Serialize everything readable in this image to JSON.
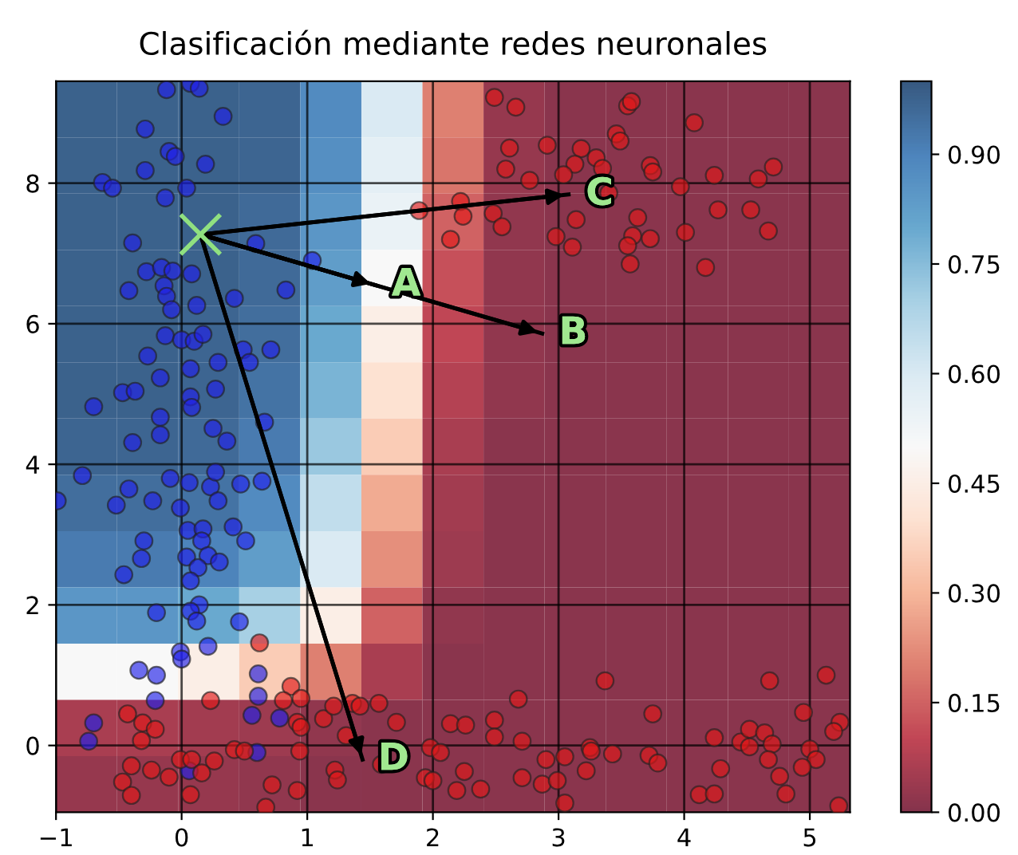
{
  "chart_data": [
    {
      "type": "heatmap",
      "categories": [
        null,
        null,
        null,
        null,
        null,
        null,
        null,
        null,
        null,
        null,
        null,
        null,
        null
      ],
      "y_categories": [
        null,
        null,
        null,
        null,
        null,
        null,
        null,
        null,
        null,
        null,
        null,
        null,
        null
      ],
      "clim": [
        0,
        1
      ],
      "cticks": [
        {
          "value": 0,
          "label": "0.00"
        },
        {
          "value": 0.15,
          "label": "0.15"
        },
        {
          "value": 0.3,
          "label": "0.30"
        },
        {
          "value": 0.45,
          "label": "0.45"
        },
        {
          "value": 0.6,
          "label": "0.60"
        },
        {
          "value": 0.75,
          "label": "0.75"
        },
        {
          "value": 0.9,
          "label": "0.90"
        }
      ],
      "cells": [
        [
          0.98,
          0.98,
          0.98,
          0.97,
          0.88,
          0.6,
          0.2,
          0.03,
          0.01,
          0.01,
          0.01,
          0.01,
          0.01
        ],
        [
          0.98,
          0.98,
          0.98,
          0.97,
          0.87,
          0.57,
          0.18,
          0.03,
          0.01,
          0.01,
          0.01,
          0.01,
          0.01
        ],
        [
          0.98,
          0.98,
          0.98,
          0.96,
          0.85,
          0.55,
          0.15,
          0.02,
          0.01,
          0.01,
          0.01,
          0.01,
          0.01
        ],
        [
          0.98,
          0.98,
          0.98,
          0.96,
          0.83,
          0.5,
          0.12,
          0.02,
          0.01,
          0.01,
          0.01,
          0.01,
          0.01
        ],
        [
          0.98,
          0.98,
          0.97,
          0.95,
          0.8,
          0.45,
          0.1,
          0.02,
          0.01,
          0.01,
          0.01,
          0.01,
          0.01
        ],
        [
          0.98,
          0.98,
          0.97,
          0.94,
          0.77,
          0.4,
          0.08,
          0.02,
          0.01,
          0.01,
          0.01,
          0.01,
          0.01
        ],
        [
          0.97,
          0.97,
          0.96,
          0.92,
          0.72,
          0.35,
          0.06,
          0.01,
          0.01,
          0.01,
          0.01,
          0.01,
          0.01
        ],
        [
          0.95,
          0.95,
          0.94,
          0.88,
          0.65,
          0.28,
          0.05,
          0.01,
          0.01,
          0.01,
          0.01,
          0.01,
          0.01
        ],
        [
          0.92,
          0.92,
          0.9,
          0.83,
          0.6,
          0.23,
          0.04,
          0.01,
          0.01,
          0.01,
          0.01,
          0.01,
          0.01
        ],
        [
          0.85,
          0.85,
          0.8,
          0.7,
          0.45,
          0.15,
          0.02,
          0.01,
          0.01,
          0.01,
          0.01,
          0.01,
          0.01
        ],
        [
          0.5,
          0.5,
          0.45,
          0.35,
          0.2,
          0.06,
          0.01,
          0.01,
          0.01,
          0.01,
          0.01,
          0.01,
          0.01
        ],
        [
          0.06,
          0.06,
          0.05,
          0.04,
          0.02,
          0.01,
          0.01,
          0.01,
          0.01,
          0.01,
          0.01,
          0.01,
          0.01
        ],
        [
          0.03,
          0.03,
          0.03,
          0.02,
          0.01,
          0.01,
          0.01,
          0.01,
          0.01,
          0.01,
          0.01,
          0.01,
          0.01
        ]
      ]
    },
    {
      "type": "scatter",
      "title": "Clasificación mediante redes neuronales",
      "xlim": [
        -1,
        5.32
      ],
      "ylim": [
        -0.95,
        9.45
      ],
      "xticks": [
        {
          "value": -1,
          "label": "−1"
        },
        0,
        1,
        2,
        3,
        4,
        5
      ],
      "yticks": [
        0,
        2,
        4,
        6,
        8
      ],
      "grid": true,
      "series": [
        {
          "color": "#2020e8",
          "marker": "circle",
          "x": [
            -0.12,
            0.07,
            0.14,
            0.33,
            -0.29,
            -0.1,
            -0.05,
            0.19,
            -0.29,
            -0.63,
            -0.55,
            -0.13,
            0.04,
            -0.39,
            0.59,
            1.04,
            -0.28,
            -0.16,
            -0.07,
            0.08,
            -0.42,
            -0.14,
            -0.12,
            -0.08,
            0.12,
            0.42,
            0.83,
            -0.13,
            0.0,
            0.1,
            0.17,
            0.49,
            0.54,
            0.71,
            -0.27,
            0.07,
            0.29,
            -0.17,
            -0.47,
            -0.37,
            -0.7,
            0.07,
            0.08,
            0.27,
            -0.17,
            -0.17,
            0.25,
            0.36,
            -0.39,
            0.66,
            -0.79,
            -0.99,
            -0.42,
            -0.52,
            -0.23,
            -0.09,
            0.06,
            0.23,
            0.27,
            0.29,
            0.47,
            0.64,
            -0.01,
            0.05,
            0.17,
            0.16,
            0.41,
            0.51,
            -0.3,
            -0.32,
            -0.46,
            0.04,
            0.21,
            0.3,
            0.13,
            0.07,
            -0.2,
            0.14,
            0.07,
            0.12,
            0.46,
            -0.01,
            0.0,
            0.21,
            -0.34,
            -0.2,
            -0.21,
            0.61,
            0.61,
            0.56,
            0.78,
            -0.7,
            -0.74,
            0.6,
            0.06
          ],
          "values": [
            9.33,
            9.42,
            9.35,
            8.95,
            8.77,
            8.45,
            8.38,
            8.27,
            8.18,
            8.01,
            7.93,
            7.79,
            7.93,
            7.15,
            7.14,
            6.9,
            6.74,
            6.8,
            6.75,
            6.71,
            6.47,
            6.54,
            6.39,
            6.2,
            6.26,
            6.36,
            6.48,
            5.83,
            5.77,
            5.75,
            5.85,
            5.63,
            5.45,
            5.63,
            5.54,
            5.36,
            5.45,
            5.23,
            5.02,
            5.04,
            4.82,
            4.96,
            4.81,
            5.07,
            4.67,
            4.42,
            4.51,
            4.33,
            4.31,
            4.6,
            3.84,
            3.48,
            3.65,
            3.42,
            3.48,
            3.8,
            3.74,
            3.68,
            3.89,
            3.48,
            3.72,
            3.76,
            3.38,
            3.06,
            3.08,
            2.91,
            3.11,
            2.91,
            2.91,
            2.66,
            2.43,
            2.68,
            2.7,
            2.61,
            2.53,
            2.34,
            1.89,
            2.0,
            1.91,
            1.77,
            1.76,
            1.33,
            1.23,
            1.41,
            1.07,
            1.0,
            0.64,
            1.02,
            0.7,
            0.43,
            0.39,
            0.32,
            0.06,
            -0.1,
            -0.36
          ]
        },
        {
          "color": "#e01818",
          "marker": "circle",
          "x": [
            0.62,
            0.23,
            -0.43,
            -0.31,
            -0.21,
            -0.32,
            0.87,
            0.95,
            0.81,
            0.92,
            0.95,
            1.13,
            1.21,
            1.36,
            1.42,
            1.57,
            1.71,
            1.31,
            0.42,
            0.5,
            0.94,
            -0.01,
            0.08,
            0.26,
            -0.4,
            -0.24,
            -0.1,
            0.16,
            -0.47,
            -0.4,
            0.07,
            0.72,
            0.92,
            1.22,
            1.24,
            1.59,
            0.67,
            1.98,
            2.06,
            1.94,
            2.0,
            2.14,
            2.26,
            2.49,
            2.49,
            2.68,
            2.71,
            2.25,
            2.19,
            2.38,
            2.71,
            2.87,
            2.99,
            2.9,
            3.05,
            3.05,
            3.25,
            3.26,
            3.22,
            3.43,
            3.37,
            3.75,
            3.72,
            3.79,
            4.24,
            4.29,
            4.12,
            4.24,
            4.45,
            4.52,
            4.52,
            4.64,
            4.7,
            4.67,
            4.76,
            4.81,
            4.68,
            4.95,
            5.13,
            5.24,
            5.19,
            5.0,
            5.05,
            4.94,
            5.23,
            2.49,
            2.66,
            3.55,
            3.58,
            4.08,
            2.61,
            2.91,
            3.18,
            3.3,
            3.46,
            3.49,
            3.13,
            3.04,
            3.35,
            2.58,
            2.77,
            3.73,
            3.75,
            3.97,
            4.24,
            4.59,
            4.71,
            3.4,
            1.89,
            2.22,
            2.24,
            2.48,
            2.55,
            2.14,
            3.14,
            2.98,
            3.11,
            3.63,
            3.59,
            3.55,
            3.73,
            3.57,
            4.01,
            4.27,
            4.53,
            4.67,
            4.17
          ],
          "values": [
            1.46,
            0.64,
            0.45,
            0.32,
            0.23,
            0.07,
            0.84,
            0.67,
            0.64,
            0.33,
            0.26,
            0.38,
            0.56,
            0.6,
            0.56,
            0.6,
            0.33,
            0.14,
            -0.06,
            -0.08,
            -0.08,
            -0.2,
            -0.2,
            -0.22,
            -0.29,
            -0.35,
            -0.45,
            -0.39,
            -0.52,
            -0.71,
            -0.7,
            -0.56,
            -0.64,
            -0.35,
            -0.49,
            -0.27,
            -0.88,
            -0.03,
            -0.1,
            -0.46,
            -0.5,
            0.31,
            0.29,
            0.36,
            0.12,
            0.66,
            0.06,
            -0.37,
            -0.64,
            -0.62,
            -0.46,
            -0.55,
            -0.5,
            -0.2,
            -0.16,
            -0.82,
            -0.03,
            -0.08,
            -0.36,
            -0.12,
            0.92,
            0.45,
            -0.14,
            -0.25,
            0.11,
            -0.33,
            -0.7,
            -0.69,
            0.05,
            0.23,
            -0.02,
            0.18,
            0.02,
            -0.2,
            -0.44,
            -0.69,
            0.92,
            0.47,
            1.0,
            0.33,
            0.2,
            -0.05,
            -0.2,
            -0.31,
            -0.86,
            9.22,
            9.08,
            9.1,
            9.16,
            8.86,
            8.5,
            8.54,
            8.49,
            8.36,
            8.7,
            8.6,
            8.27,
            8.12,
            8.21,
            8.2,
            8.04,
            8.25,
            8.16,
            7.95,
            8.11,
            8.06,
            8.23,
            7.86,
            7.61,
            7.74,
            7.53,
            7.57,
            7.38,
            7.2,
            7.48,
            7.24,
            7.09,
            7.51,
            7.25,
            7.11,
            7.21,
            6.85,
            7.3,
            7.62,
            7.62,
            7.32,
            6.8
          ]
        },
        {
          "type": "line",
          "color": "#000000",
          "x": [
            0.15,
            3.08
          ],
          "values": [
            7.27,
            7.84
          ]
        },
        {
          "type": "line",
          "color": "#000000",
          "x": [
            0.15,
            1.54
          ],
          "values": [
            7.27,
            6.55
          ]
        },
        {
          "type": "line",
          "color": "#000000",
          "x": [
            0.15,
            2.87
          ],
          "values": [
            7.27,
            5.86
          ]
        },
        {
          "type": "line",
          "color": "#000000",
          "x": [
            0.15,
            1.44
          ],
          "values": [
            7.27,
            -0.2
          ]
        },
        {
          "color": "#90e080",
          "marker": "cross",
          "x": [
            0.15
          ],
          "values": [
            7.27
          ]
        }
      ],
      "annotations": [
        {
          "text": "C",
          "x": 3.08,
          "y": 7.84
        },
        {
          "text": "A",
          "x": 1.54,
          "y": 6.55
        },
        {
          "text": "B",
          "x": 2.87,
          "y": 5.86
        },
        {
          "text": "D",
          "x": 1.44,
          "y": -0.2
        }
      ]
    }
  ]
}
